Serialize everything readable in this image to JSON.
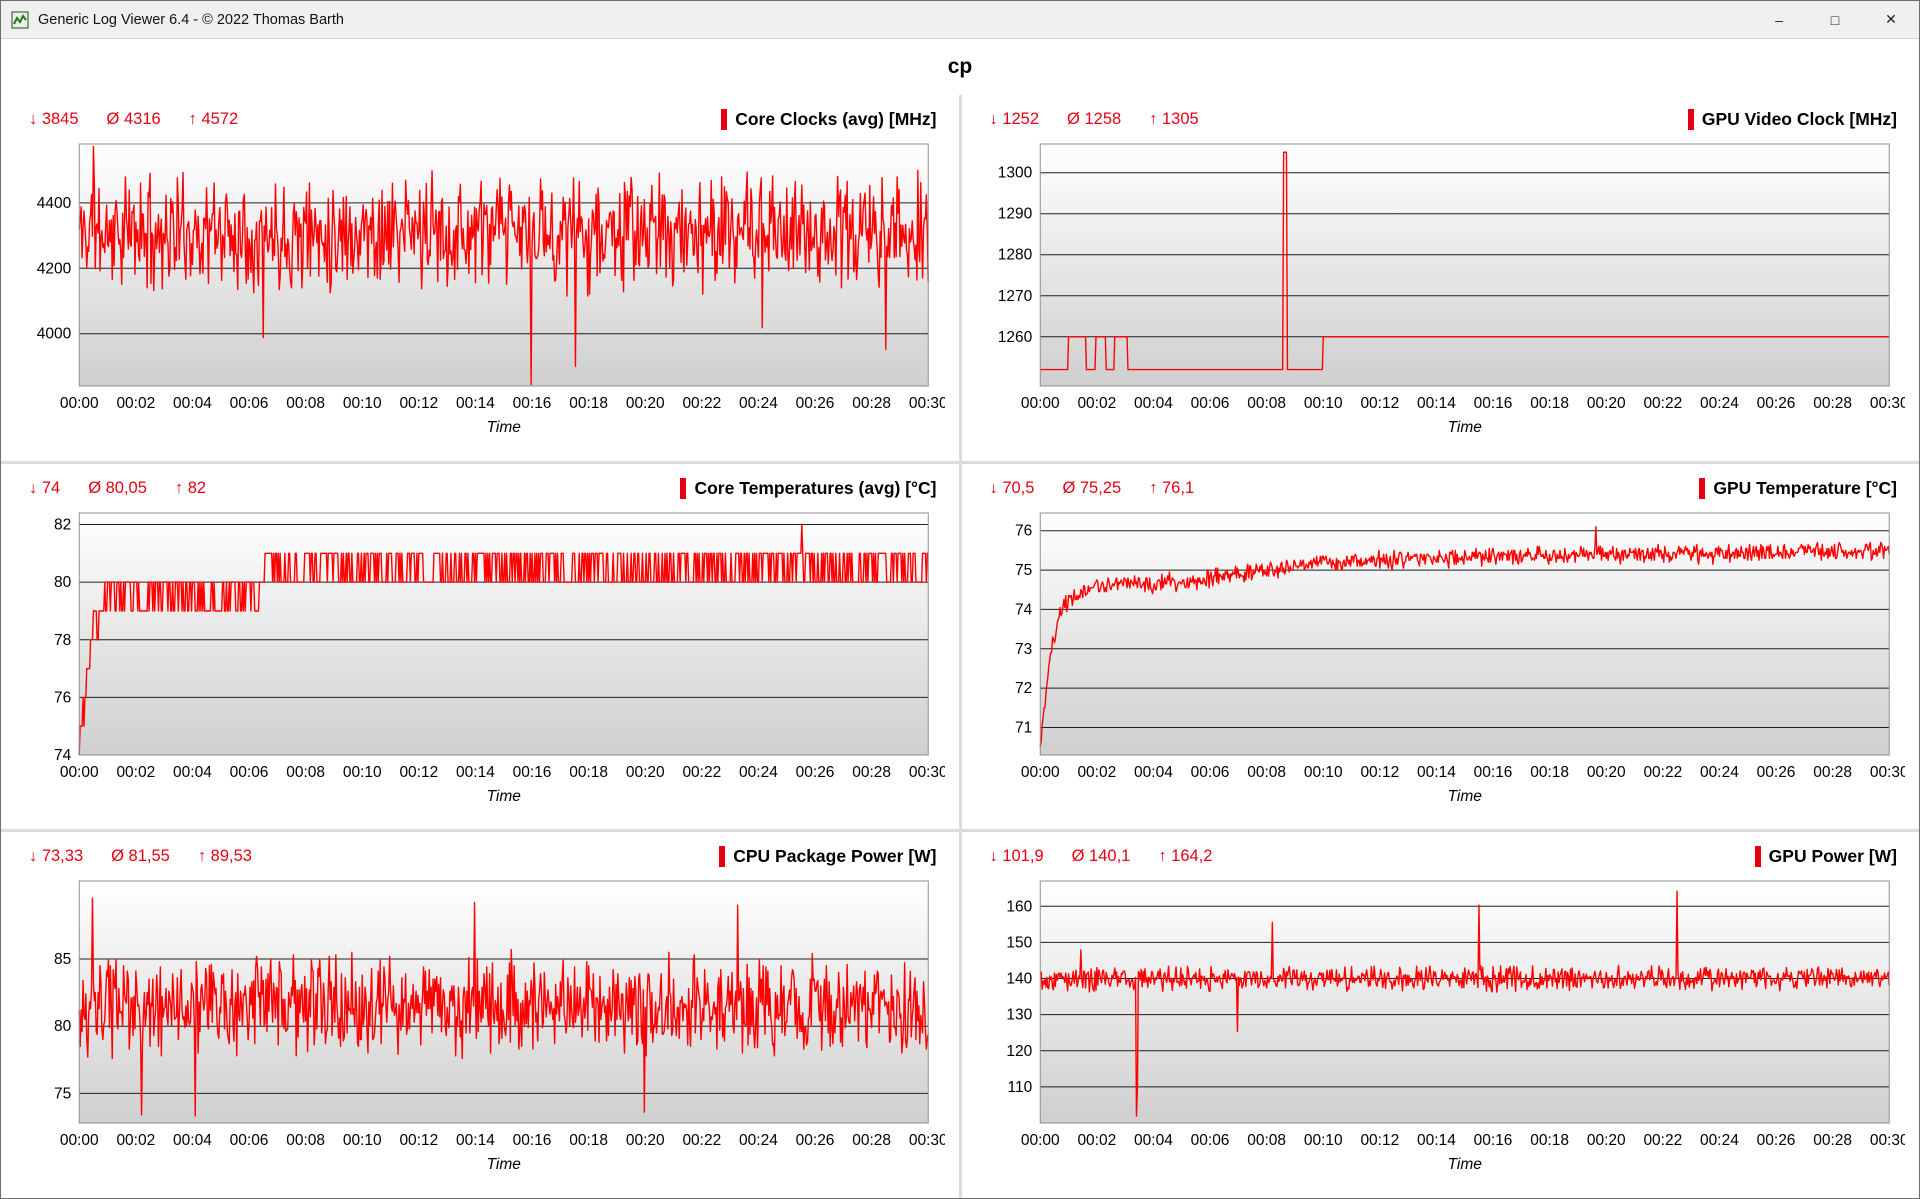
{
  "window": {
    "title": "Generic Log Viewer 6.4 - © 2022 Thomas Barth",
    "controls": {
      "minimize": "–",
      "maximize": "□",
      "close": "✕"
    }
  },
  "header": {
    "title": "cp"
  },
  "colors": {
    "accent": "#e60012",
    "line": "#fe0000",
    "grid": "#1f1f1f",
    "plot_border": "#8f8f8f",
    "plot_gradient_top": "#ffffff",
    "plot_gradient_bottom": "#cfcfcf",
    "titlebar_bg": "#f0f0f0"
  },
  "stats_symbols": {
    "min": "↓",
    "avg": "Ø",
    "max": "↑"
  },
  "x_axis": {
    "label": "Time",
    "range_seconds": [
      0,
      1800
    ],
    "tick_interval_seconds": 120,
    "tick_labels": [
      "00:00",
      "00:02",
      "00:04",
      "00:06",
      "00:08",
      "00:10",
      "00:12",
      "00:14",
      "00:16",
      "00:18",
      "00:20",
      "00:22",
      "00:24",
      "00:26",
      "00:28",
      "00:30"
    ]
  },
  "chart_data": [
    {
      "id": "core-clocks",
      "type": "line",
      "title": "Core Clocks (avg) [MHz]",
      "stats": {
        "min": "3845",
        "avg": "4316",
        "max": "4572"
      },
      "y_ticks": [
        4000,
        4200,
        4400
      ],
      "y_range": [
        3840,
        4580
      ],
      "series": {
        "mode": "noise",
        "seed": 11,
        "step": 2,
        "base": [
          [
            0,
            4310
          ],
          [
            1800,
            4310
          ]
        ],
        "noise": 200,
        "quantize": 1,
        "clamp": [
          3845,
          4555
        ],
        "spikes": [
          [
            30,
            4572
          ],
          [
            390,
            3988
          ],
          [
            958,
            3845
          ],
          [
            1052,
            3900
          ],
          [
            1448,
            4018
          ],
          [
            1710,
            3952
          ]
        ]
      }
    },
    {
      "id": "gpu-video-clock",
      "type": "line",
      "title": "GPU Video Clock [MHz]",
      "stats": {
        "min": "1252",
        "avg": "1258",
        "max": "1305"
      },
      "y_ticks": [
        1260,
        1270,
        1280,
        1290,
        1300
      ],
      "y_range": [
        1248,
        1307
      ],
      "series": {
        "mode": "points",
        "points": [
          [
            0,
            1252
          ],
          [
            58,
            1252
          ],
          [
            60,
            1260
          ],
          [
            96,
            1260
          ],
          [
            98,
            1252
          ],
          [
            116,
            1252
          ],
          [
            118,
            1260
          ],
          [
            138,
            1260
          ],
          [
            140,
            1252
          ],
          [
            156,
            1252
          ],
          [
            158,
            1260
          ],
          [
            184,
            1260
          ],
          [
            186,
            1252
          ],
          [
            514,
            1252
          ],
          [
            516,
            1305
          ],
          [
            522,
            1305
          ],
          [
            524,
            1252
          ],
          [
            598,
            1252
          ],
          [
            600,
            1260
          ],
          [
            1800,
            1260
          ]
        ]
      }
    },
    {
      "id": "core-temperatures",
      "type": "line",
      "title": "Core Temperatures (avg) [°C]",
      "stats": {
        "min": "74",
        "avg": "80,05",
        "max": "82"
      },
      "y_ticks": [
        74,
        76,
        78,
        80,
        82
      ],
      "y_range": [
        74,
        82.4
      ],
      "series": {
        "mode": "noise",
        "seed": 7,
        "step": 2,
        "base": [
          [
            0,
            74
          ],
          [
            8,
            75.5
          ],
          [
            25,
            78.2
          ],
          [
            55,
            79.4
          ],
          [
            380,
            79.5
          ],
          [
            400,
            80.45
          ],
          [
            1800,
            80.55
          ]
        ],
        "noise": 0.75,
        "quantize": 1,
        "clamp": [
          74,
          81
        ],
        "spikes": [
          [
            1532,
            82
          ]
        ]
      }
    },
    {
      "id": "gpu-temperature",
      "type": "line",
      "title": "GPU Temperature [°C]",
      "stats": {
        "min": "70,5",
        "avg": "75,25",
        "max": "76,1"
      },
      "y_ticks": [
        71,
        72,
        73,
        74,
        75,
        76
      ],
      "y_range": [
        70.3,
        76.45
      ],
      "series": {
        "mode": "noise",
        "seed": 21,
        "step": 2,
        "base": [
          [
            0,
            70.5
          ],
          [
            20,
            72.8
          ],
          [
            50,
            74.2
          ],
          [
            120,
            74.6
          ],
          [
            300,
            74.7
          ],
          [
            600,
            75.2
          ],
          [
            1000,
            75.35
          ],
          [
            1800,
            75.5
          ]
        ],
        "noise": 0.28,
        "quantize": 0.05,
        "clamp": [
          70.5,
          76.0
        ],
        "spikes": [
          [
            1178,
            76.1
          ]
        ]
      }
    },
    {
      "id": "cpu-package-power",
      "type": "line",
      "title": "CPU Package Power [W]",
      "stats": {
        "min": "73,33",
        "avg": "81,55",
        "max": "89,53"
      },
      "y_ticks": [
        75,
        80,
        85
      ],
      "y_range": [
        72.8,
        90.8
      ],
      "series": {
        "mode": "noise",
        "seed": 33,
        "step": 2,
        "base": [
          [
            0,
            80
          ],
          [
            60,
            81.5
          ],
          [
            1800,
            81.5
          ]
        ],
        "noise": 4.2,
        "quantize": 0.1,
        "clamp": [
          73.4,
          89.4
        ],
        "spikes": [
          [
            28,
            89.53
          ],
          [
            132,
            73.4
          ],
          [
            246,
            73.33
          ],
          [
            838,
            89.2
          ],
          [
            1198,
            73.6
          ],
          [
            1396,
            89.0
          ]
        ]
      }
    },
    {
      "id": "gpu-power",
      "type": "line",
      "title": "GPU Power [W]",
      "stats": {
        "min": "101,9",
        "avg": "140,1",
        "max": "164,2"
      },
      "y_ticks": [
        110,
        120,
        130,
        140,
        150,
        160
      ],
      "y_range": [
        100,
        167
      ],
      "series": {
        "mode": "noise",
        "seed": 55,
        "step": 2,
        "base": [
          [
            0,
            140
          ],
          [
            1800,
            140
          ]
        ],
        "noise": 4,
        "quantize": 0.1,
        "clamp": [
          128,
          150
        ],
        "spikes": [
          [
            86,
            147.9
          ],
          [
            204,
            101.9
          ],
          [
            206,
            110
          ],
          [
            418,
            125.3
          ],
          [
            492,
            155.5
          ],
          [
            930,
            160.3
          ],
          [
            1350,
            164.2
          ]
        ]
      }
    }
  ]
}
